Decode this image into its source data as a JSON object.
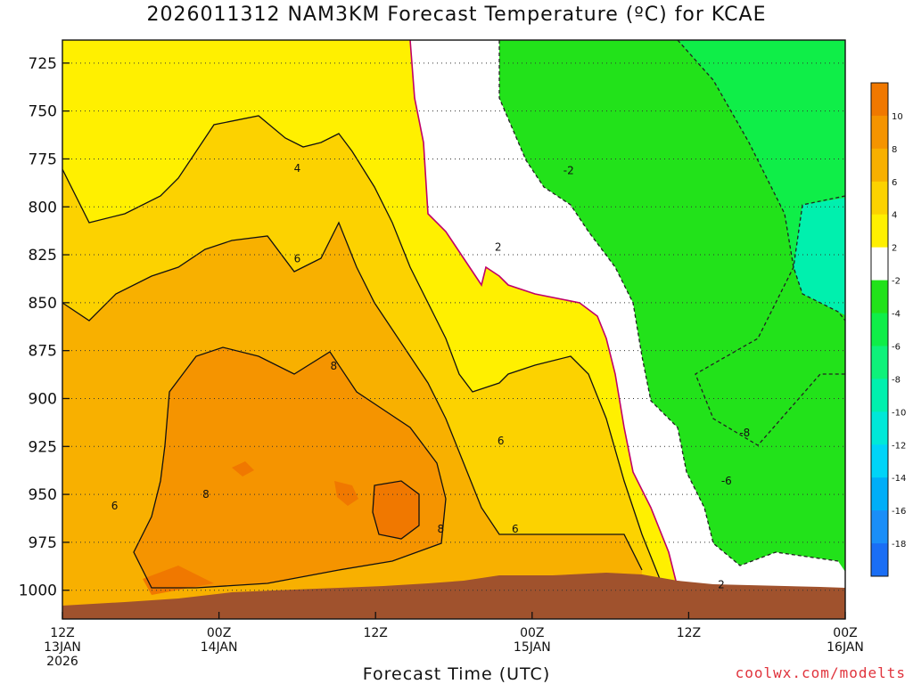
{
  "title": "2026011312 NAM3KM Forecast Temperature (ºC) for KCAE",
  "xlabel": "Forecast Time (UTC)",
  "credit": "coolwx.com/modelts",
  "chart_data": {
    "type": "heatmap",
    "title": "2026011312 NAM3KM Forecast Temperature (ºC) for KCAE",
    "xlabel": "Forecast Time (UTC)",
    "ylabel": "",
    "y_axis": "pressure (hPa), inverted",
    "ylim": [
      1015,
      713
    ],
    "y_ticks": [
      725,
      750,
      775,
      800,
      825,
      850,
      875,
      900,
      925,
      950,
      975,
      1000
    ],
    "x_ticks": [
      {
        "hour": 0,
        "l1": "12Z",
        "l2": "13JAN",
        "l3": "2026"
      },
      {
        "hour": 12,
        "l1": "00Z",
        "l2": "14JAN",
        "l3": ""
      },
      {
        "hour": 24,
        "l1": "12Z",
        "l2": "",
        "l3": ""
      },
      {
        "hour": 36,
        "l1": "00Z",
        "l2": "15JAN",
        "l3": ""
      },
      {
        "hour": 48,
        "l1": "12Z",
        "l2": "",
        "l3": ""
      },
      {
        "hour": 60,
        "l1": "00Z",
        "l2": "16JAN",
        "l3": ""
      }
    ],
    "grid": true,
    "colorbar": {
      "ticks": [
        10,
        8,
        6,
        4,
        2,
        -2,
        -4,
        -6,
        -8,
        -10,
        -12,
        -14,
        -16,
        -18
      ],
      "colors": [
        "#f07800",
        "#f59400",
        "#f8b000",
        "#fcd200",
        "#fff000",
        "#ffffff",
        "#22e21a",
        "#0fee48",
        "#0ef27a",
        "#00f0ae",
        "#00e8d8",
        "#00d4f8",
        "#00aef8",
        "#1a8ef8",
        "#1a6ef5"
      ]
    },
    "contour_labels": [
      {
        "text": "4",
        "hour": 18.0,
        "p": 780
      },
      {
        "text": "6",
        "hour": 18.0,
        "p": 827
      },
      {
        "text": "8",
        "hour": 20.8,
        "p": 883
      },
      {
        "text": "6",
        "hour": 4.0,
        "p": 956
      },
      {
        "text": "8",
        "hour": 11.0,
        "p": 950
      },
      {
        "text": "8",
        "hour": 29.0,
        "p": 968
      },
      {
        "text": "6",
        "hour": 33.6,
        "p": 922
      },
      {
        "text": "6",
        "hour": 34.7,
        "p": 968
      },
      {
        "text": "-2",
        "hour": 38.8,
        "p": 781
      },
      {
        "text": "2",
        "hour": 33.4,
        "p": 821
      },
      {
        "text": "-8",
        "hour": 52.3,
        "p": 918
      },
      {
        "text": "-6",
        "hour": 50.9,
        "p": 943
      },
      {
        "text": "2",
        "hour": 50.5,
        "p": 997
      }
    ]
  }
}
